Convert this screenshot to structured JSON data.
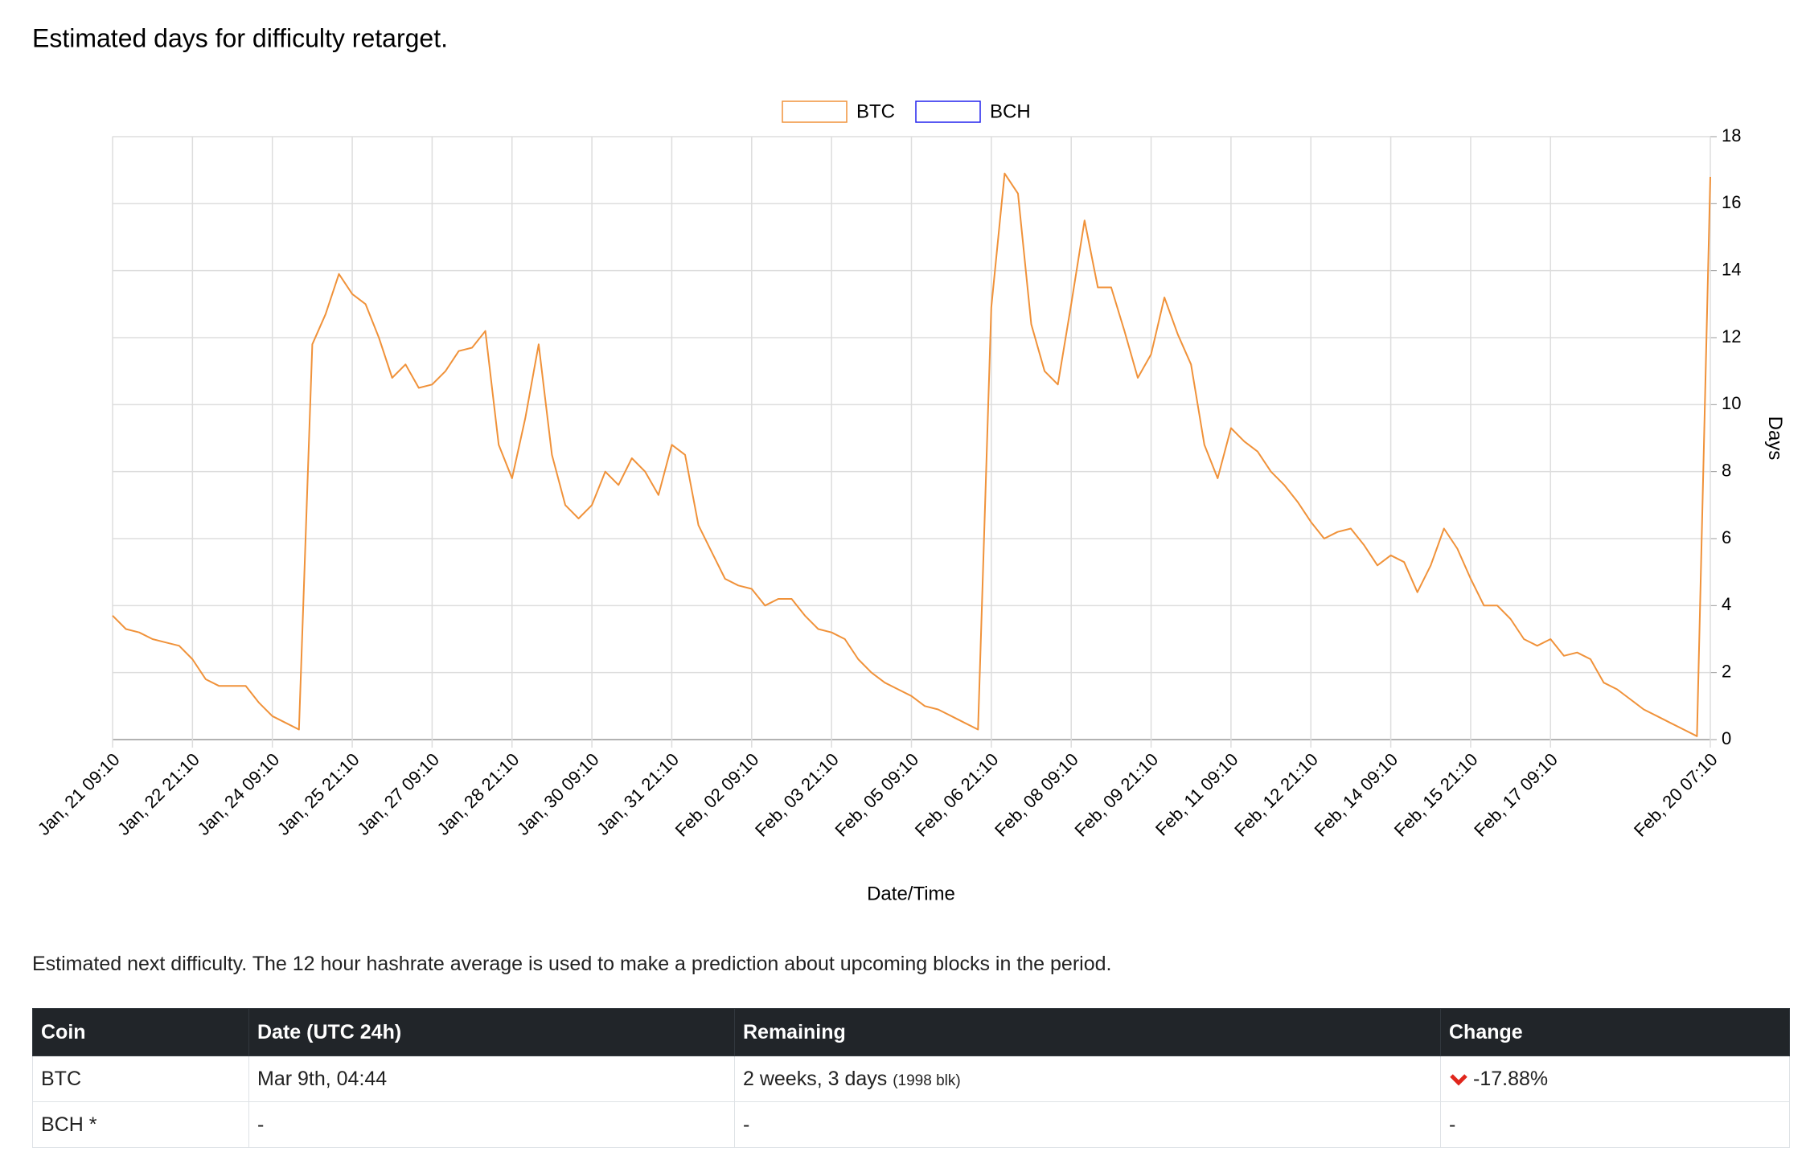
{
  "chart_data": {
    "type": "line",
    "title": "Estimated days for difficulty retarget.",
    "xlabel": "Date/Time",
    "ylabel": "Days",
    "categories": [
      "Jan, 21 09:10",
      null,
      null,
      null,
      null,
      null,
      "Jan, 22 21:10",
      null,
      null,
      null,
      null,
      null,
      "Jan, 24 09:10",
      null,
      null,
      null,
      null,
      null,
      "Jan, 25 21:10",
      null,
      null,
      null,
      null,
      null,
      "Jan, 27 09:10",
      null,
      null,
      null,
      null,
      null,
      "Jan, 28 21:10",
      null,
      null,
      null,
      null,
      null,
      "Jan, 30 09:10",
      null,
      null,
      null,
      null,
      null,
      "Jan, 31 21:10",
      null,
      null,
      null,
      null,
      null,
      "Feb, 02 09:10",
      null,
      null,
      null,
      null,
      null,
      "Feb, 03 21:10",
      null,
      null,
      null,
      null,
      null,
      "Feb, 05 09:10",
      null,
      null,
      null,
      null,
      null,
      "Feb, 06 21:10",
      null,
      null,
      null,
      null,
      null,
      "Feb, 08 09:10",
      null,
      null,
      null,
      null,
      null,
      "Feb, 09 21:10",
      null,
      null,
      null,
      null,
      null,
      "Feb, 11 09:10",
      null,
      null,
      null,
      null,
      null,
      "Feb, 12 21:10",
      null,
      null,
      null,
      null,
      null,
      "Feb, 14 09:10",
      null,
      null,
      null,
      null,
      null,
      "Feb, 15 21:10",
      null,
      null,
      null,
      null,
      null,
      "Feb, 17 09:10",
      null,
      null,
      null,
      null,
      null,
      null,
      null,
      null,
      null,
      null,
      null,
      "Feb, 20 07:10"
    ],
    "series": [
      {
        "name": "BTC",
        "color": "#f0923a",
        "values": [
          3.7,
          3.3,
          3.2,
          3.0,
          2.9,
          2.8,
          2.4,
          1.8,
          1.6,
          1.6,
          1.6,
          1.1,
          0.7,
          0.5,
          0.3,
          11.8,
          12.7,
          13.9,
          13.3,
          13.0,
          12.0,
          10.8,
          11.2,
          10.5,
          10.6,
          11.0,
          11.6,
          11.7,
          12.2,
          8.8,
          7.8,
          9.6,
          11.8,
          8.5,
          7.0,
          6.6,
          7.0,
          8.0,
          7.6,
          8.4,
          8.0,
          7.3,
          8.8,
          8.5,
          6.4,
          5.6,
          4.8,
          4.6,
          4.5,
          4.0,
          4.2,
          4.2,
          3.7,
          3.3,
          3.2,
          3.0,
          2.4,
          2.0,
          1.7,
          1.5,
          1.3,
          1.0,
          0.9,
          0.7,
          0.5,
          0.3,
          12.9,
          16.9,
          16.3,
          12.4,
          11.0,
          10.6,
          13.0,
          15.5,
          13.5,
          13.5,
          12.2,
          10.8,
          11.5,
          13.2,
          12.1,
          11.2,
          8.8,
          7.8,
          9.3,
          8.9,
          8.6,
          8.0,
          7.6,
          7.1,
          6.5,
          6.0,
          6.2,
          6.3,
          5.8,
          5.2,
          5.5,
          5.3,
          4.4,
          5.2,
          6.3,
          5.7,
          4.8,
          4.0,
          4.0,
          3.6,
          3.0,
          2.8,
          3.0,
          2.5,
          2.6,
          2.4,
          1.7,
          1.5,
          1.2,
          0.9,
          0.7,
          0.5,
          0.3,
          0.1,
          16.8
        ]
      },
      {
        "name": "BCH",
        "color": "#2222ee",
        "values": [
          null,
          null,
          null,
          null,
          null,
          null,
          null,
          null,
          null,
          null,
          null,
          null,
          null,
          null,
          null,
          null,
          null,
          null,
          null,
          null,
          null,
          null,
          null,
          null,
          null,
          null,
          null,
          null,
          null,
          null,
          null,
          null,
          null,
          null,
          null,
          null,
          null,
          null,
          null,
          null,
          null,
          null,
          null,
          null,
          null,
          null,
          null,
          null,
          null,
          null,
          null,
          null,
          null,
          null,
          null,
          null,
          null,
          null,
          null,
          null,
          null,
          null,
          null,
          null,
          null,
          null,
          null,
          null,
          null,
          null,
          null,
          null,
          null,
          null,
          null,
          null,
          null,
          null,
          null,
          null,
          null,
          null,
          null,
          null,
          null,
          null,
          null,
          null,
          null,
          null,
          null,
          null,
          null,
          null,
          null,
          null,
          null,
          null,
          null,
          null,
          null,
          null,
          null,
          null,
          null,
          null,
          null,
          null,
          null,
          null,
          null,
          null,
          null,
          null,
          null,
          null,
          null,
          null,
          null,
          null,
          null
        ]
      }
    ],
    "ylim": [
      0,
      18
    ],
    "yticks": [
      0,
      2,
      4,
      6,
      8,
      10,
      12,
      14,
      16,
      18
    ],
    "grid": true,
    "legend": "top"
  },
  "note": "Estimated next difficulty. The 12 hour hashrate average is used to make a prediction about upcoming blocks in the period.",
  "table": {
    "header": [
      "Coin",
      "Date (UTC 24h)",
      "Remaining",
      "Change"
    ],
    "rows": [
      {
        "coin": "BTC",
        "date": "Mar 9th, 04:44",
        "remaining": "2 weeks, 3 days",
        "blocks": "(1998 blk)",
        "change": "-17.88%"
      },
      {
        "coin": "BCH *",
        "date": "-",
        "remaining": "-",
        "change": "-"
      }
    ]
  }
}
